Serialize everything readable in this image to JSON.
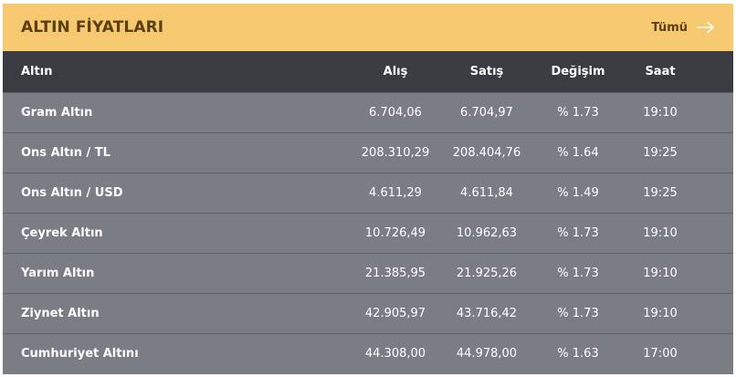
{
  "header": {
    "title": "ALTIN FİYATLARI",
    "all_label": "Tümü",
    "all_icon": "arrow-right-icon"
  },
  "table": {
    "columns": [
      "Altın",
      "Alış",
      "Satış",
      "Değişim",
      "Saat"
    ],
    "rows": [
      {
        "name": "Gram Altın",
        "buy": "6.704,06",
        "sell": "6.704,97",
        "change": "% 1.73",
        "time": "19:10"
      },
      {
        "name": "Ons Altın / TL",
        "buy": "208.310,29",
        "sell": "208.404,76",
        "change": "% 1.64",
        "time": "19:25"
      },
      {
        "name": "Ons Altın / USD",
        "buy": "4.611,29",
        "sell": "4.611,84",
        "change": "% 1.49",
        "time": "19:25"
      },
      {
        "name": "Çeyrek Altın",
        "buy": "10.726,49",
        "sell": "10.962,63",
        "change": "% 1.73",
        "time": "19:10"
      },
      {
        "name": "Yarım Altın",
        "buy": "21.385,95",
        "sell": "21.925,26",
        "change": "% 1.73",
        "time": "19:10"
      },
      {
        "name": "Ziynet Altın",
        "buy": "42.905,97",
        "sell": "43.716,42",
        "change": "% 1.73",
        "time": "19:10"
      },
      {
        "name": "Cumhuriyet Altını",
        "buy": "44.308,00",
        "sell": "44.978,00",
        "change": "% 1.63",
        "time": "17:00"
      }
    ]
  },
  "colors": {
    "header_bg": "#f6c870",
    "header_text": "#5a4010",
    "table_head_bg": "#3a3c42",
    "row_bg": "#7a7d84",
    "row_text": "#ffffff"
  }
}
